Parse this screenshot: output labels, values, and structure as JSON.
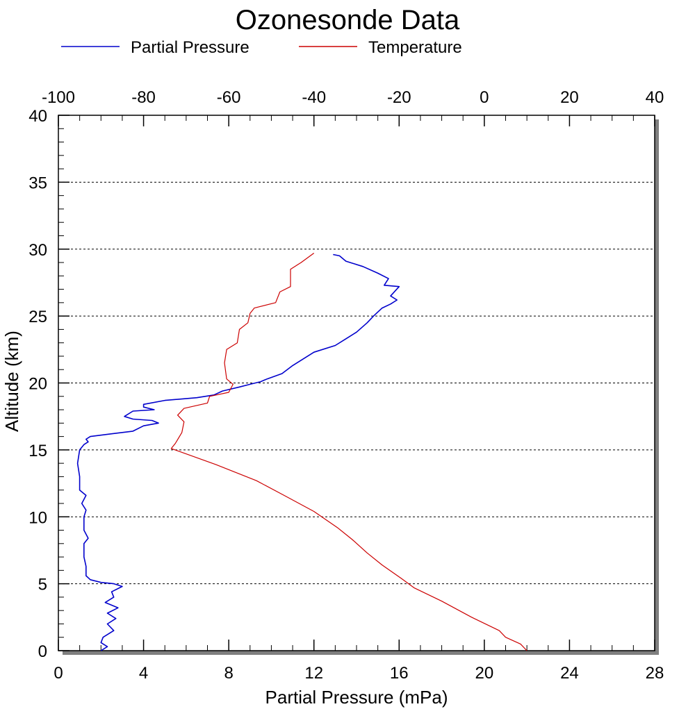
{
  "chart_data": {
    "type": "line",
    "title": "Ozonesonde Data",
    "xlabel": "Partial Pressure (mPa)",
    "ylabel": "Altitude (km)",
    "legend_position": "top",
    "grid": {
      "horizontal_dotted": true,
      "vertical": false
    },
    "x_bottom": {
      "range": [
        0,
        28
      ],
      "ticks": [
        "0",
        "4",
        "8",
        "12",
        "16",
        "20",
        "24",
        "28"
      ]
    },
    "x_top": {
      "range": [
        -100,
        40
      ],
      "ticks": [
        "-100",
        "-80",
        "-60",
        "-40",
        "-20",
        "0",
        "20",
        "40"
      ]
    },
    "y": {
      "range": [
        0,
        40
      ],
      "ticks": [
        "0",
        "5",
        "10",
        "15",
        "20",
        "25",
        "30",
        "35",
        "40"
      ]
    },
    "series": [
      {
        "name": "Partial Pressure",
        "color": "#0000cc",
        "axis": "bottom",
        "points": [
          [
            2.0,
            0
          ],
          [
            2.3,
            0.3
          ],
          [
            2.0,
            0.6
          ],
          [
            2.1,
            1.0
          ],
          [
            2.6,
            1.5
          ],
          [
            2.3,
            2.0
          ],
          [
            2.7,
            2.4
          ],
          [
            2.3,
            2.8
          ],
          [
            2.8,
            3.2
          ],
          [
            2.2,
            3.6
          ],
          [
            2.6,
            4.0
          ],
          [
            2.5,
            4.4
          ],
          [
            3.0,
            4.8
          ],
          [
            2.6,
            5.0
          ],
          [
            2.0,
            5.1
          ],
          [
            1.5,
            5.3
          ],
          [
            1.3,
            5.6
          ],
          [
            1.3,
            6.3
          ],
          [
            1.2,
            7.0
          ],
          [
            1.2,
            8.0
          ],
          [
            1.4,
            8.4
          ],
          [
            1.2,
            9.0
          ],
          [
            1.2,
            10.0
          ],
          [
            1.3,
            10.5
          ],
          [
            1.1,
            11.0
          ],
          [
            1.3,
            11.6
          ],
          [
            1.0,
            12.0
          ],
          [
            1.0,
            13.0
          ],
          [
            0.9,
            14.0
          ],
          [
            1.0,
            15.0
          ],
          [
            1.2,
            15.4
          ],
          [
            1.4,
            15.6
          ],
          [
            1.3,
            15.8
          ],
          [
            1.5,
            16.0
          ],
          [
            2.5,
            16.2
          ],
          [
            3.5,
            16.4
          ],
          [
            4.0,
            16.8
          ],
          [
            4.7,
            17.0
          ],
          [
            4.4,
            17.2
          ],
          [
            3.5,
            17.3
          ],
          [
            3.1,
            17.5
          ],
          [
            3.5,
            17.9
          ],
          [
            4.5,
            18.0
          ],
          [
            4.0,
            18.2
          ],
          [
            4.0,
            18.4
          ],
          [
            5.0,
            18.7
          ],
          [
            6.5,
            18.9
          ],
          [
            7.3,
            19.1
          ],
          [
            7.7,
            19.4
          ],
          [
            8.5,
            19.7
          ],
          [
            9.0,
            19.9
          ],
          [
            9.5,
            20.1
          ],
          [
            9.8,
            20.3
          ],
          [
            10.5,
            20.7
          ],
          [
            11.0,
            21.3
          ],
          [
            11.5,
            21.8
          ],
          [
            12.0,
            22.3
          ],
          [
            13.0,
            22.8
          ],
          [
            13.5,
            23.3
          ],
          [
            14.0,
            23.8
          ],
          [
            14.5,
            24.5
          ],
          [
            14.8,
            25.0
          ],
          [
            15.2,
            25.6
          ],
          [
            15.6,
            25.9
          ],
          [
            15.9,
            26.2
          ],
          [
            15.6,
            26.5
          ],
          [
            16.0,
            27.2
          ],
          [
            15.3,
            27.3
          ],
          [
            15.5,
            27.8
          ],
          [
            15.0,
            28.2
          ],
          [
            14.3,
            28.7
          ],
          [
            13.5,
            29.1
          ],
          [
            13.2,
            29.5
          ],
          [
            12.9,
            29.6
          ]
        ]
      },
      {
        "name": "Temperature",
        "color": "#cc0000",
        "axis": "top",
        "points": [
          [
            10.0,
            0
          ],
          [
            8.5,
            0.5
          ],
          [
            5.0,
            1.0
          ],
          [
            3.5,
            1.5
          ],
          [
            -3.0,
            2.5
          ],
          [
            -10.0,
            3.7
          ],
          [
            -16.5,
            4.7
          ],
          [
            -19.5,
            5.4
          ],
          [
            -24.0,
            6.4
          ],
          [
            -27.5,
            7.3
          ],
          [
            -31.0,
            8.3
          ],
          [
            -34.5,
            9.2
          ],
          [
            -40.0,
            10.4
          ],
          [
            -47.0,
            11.6
          ],
          [
            -53.5,
            12.7
          ],
          [
            -63.0,
            13.9
          ],
          [
            -73.5,
            15.1
          ],
          [
            -72.5,
            15.5
          ],
          [
            -71.0,
            16.3
          ],
          [
            -70.5,
            17.1
          ],
          [
            -72.0,
            17.6
          ],
          [
            -70.5,
            18.1
          ],
          [
            -65.0,
            18.5
          ],
          [
            -64.5,
            19.0
          ],
          [
            -60.0,
            19.3
          ],
          [
            -59.0,
            19.9
          ],
          [
            -60.5,
            20.3
          ],
          [
            -61.0,
            21.5
          ],
          [
            -60.5,
            22.5
          ],
          [
            -58.0,
            23.0
          ],
          [
            -57.5,
            24.0
          ],
          [
            -55.5,
            24.5
          ],
          [
            -55.0,
            25.2
          ],
          [
            -54.0,
            25.6
          ],
          [
            -49.0,
            26.0
          ],
          [
            -48.0,
            26.8
          ],
          [
            -45.5,
            27.2
          ],
          [
            -45.5,
            28.5
          ],
          [
            -43.0,
            29.0
          ],
          [
            -40.0,
            29.7
          ]
        ]
      }
    ]
  }
}
